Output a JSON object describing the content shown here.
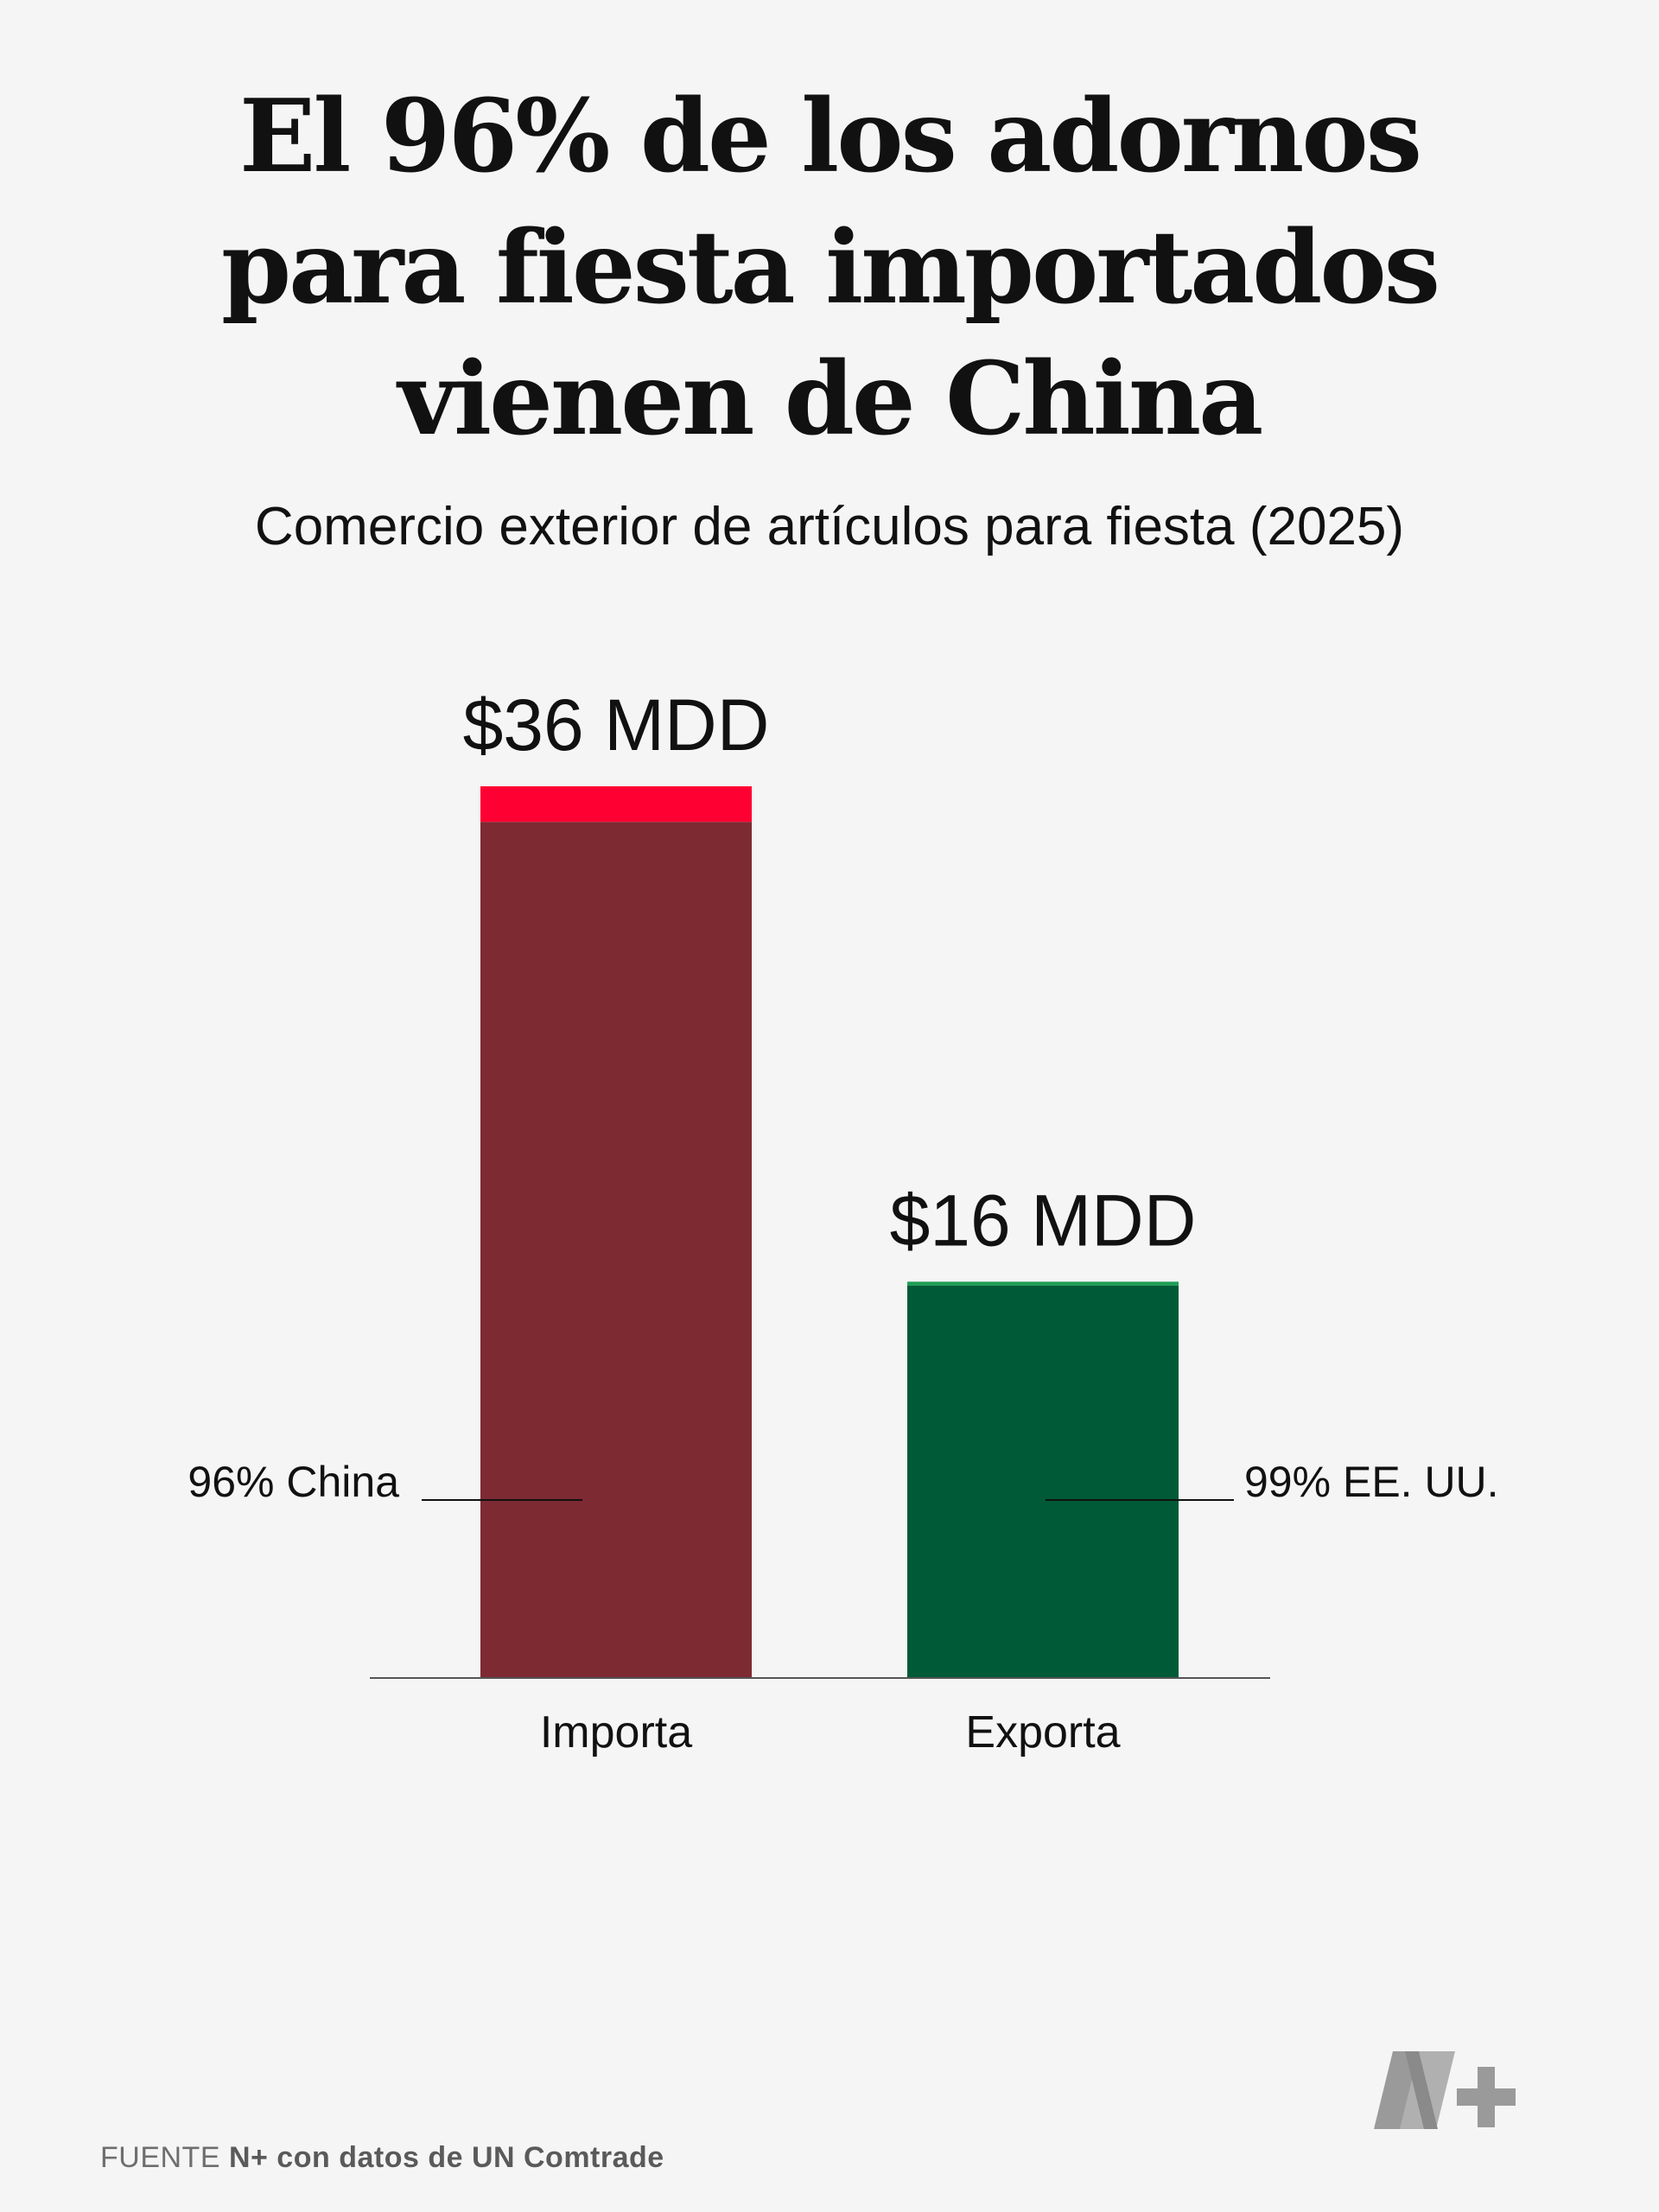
{
  "title_lines": [
    "El 96% de los adornos",
    "para fiesta importados",
    "vienen de China"
  ],
  "subtitle": "Comercio exterior de artículos para fiesta (2025)",
  "chart_data": {
    "type": "bar",
    "title": "El 96% de los adornos para fiesta importados vienen de China",
    "subtitle": "Comercio exterior de artículos para fiesta (2025)",
    "categories": [
      "Importa",
      "Exporta"
    ],
    "values": [
      36,
      16
    ],
    "value_labels": [
      "$36 MDD",
      "$16 MDD"
    ],
    "unit": "MDD",
    "ylim": [
      0,
      36
    ],
    "grid": false,
    "legend": "none",
    "stacks": [
      {
        "category": "Importa",
        "main_share_pct": 96,
        "main_label": "96% China",
        "main_color": "#7d2a33",
        "rest_color": "#ff0033",
        "annotation_side": "left"
      },
      {
        "category": "Exporta",
        "main_share_pct": 99,
        "main_label": "99% EE. UU.",
        "main_color": "#005a37",
        "rest_color": "#1e9e55",
        "annotation_side": "right"
      }
    ]
  },
  "footer": {
    "source_prefix": "FUENTE",
    "source_text": "N+ con datos de UN Comtrade"
  },
  "logo": {
    "name": "N+",
    "icon": "nplus-logo"
  },
  "colors": {
    "background": "#f5f5f5",
    "axis": "#555555",
    "logo": "#9a9a9a"
  }
}
